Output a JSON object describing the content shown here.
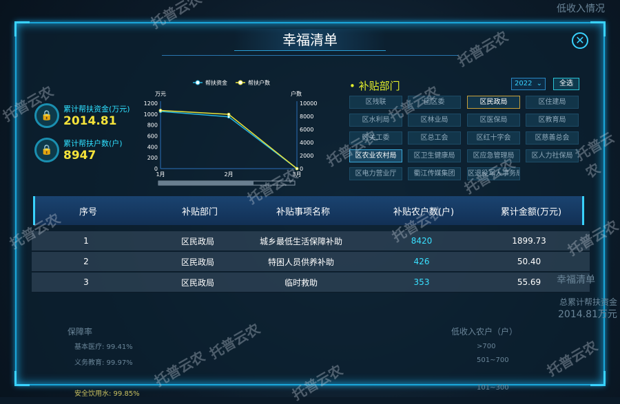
{
  "modal": {
    "title": "幸福清单",
    "close_icon": "close-icon"
  },
  "stats": [
    {
      "label": "累计帮扶资金(万元)",
      "value": "2014.81",
      "icon": "lock-icon"
    },
    {
      "label": "累计帮扶户数(户)",
      "value": "8947",
      "icon": "lock-icon"
    }
  ],
  "chart_data": {
    "type": "line",
    "categories": [
      "1月",
      "2月",
      "3月"
    ],
    "series": [
      {
        "name": "帮扶资金",
        "axis": "left",
        "color": "#27b6e0",
        "values": [
          1050,
          950,
          0
        ]
      },
      {
        "name": "帮扶户数",
        "axis": "right",
        "color": "#e8e23a",
        "values": [
          8900,
          8300,
          0
        ]
      }
    ],
    "ylabel_left": "万元",
    "ylabel_right": "户数",
    "ylim_left": [
      0,
      1200
    ],
    "ylim_right": [
      0,
      10000
    ],
    "yticks_left": [
      "0",
      "200",
      "400",
      "600",
      "800",
      "1000",
      "1200"
    ],
    "yticks_right": [
      "0",
      "2000",
      "4000",
      "6000",
      "8000",
      "10000"
    ],
    "legend": "top",
    "grid": false
  },
  "departments": {
    "title": "补贴部门",
    "year": "2022",
    "select_all": "全选",
    "items": [
      "区残联",
      "团区委",
      "区民政局",
      "区住建局",
      "区水利局",
      "区林业局",
      "区医保局",
      "区教育局",
      "区关工委",
      "区总工会",
      "区红十字会",
      "区慈善总会",
      "区农业农村局",
      "区卫生健康局",
      "区应急管理局",
      "区人力社保局",
      "区电力营业厅",
      "衢江传媒集团",
      "区退役军人事务局"
    ],
    "selected": "区民政局",
    "highlighted": "区农业农村局"
  },
  "table": {
    "headers": [
      "序号",
      "补贴部门",
      "补贴事项名称",
      "补贴农户数(户)",
      "累计金额(万元)"
    ],
    "rows": [
      [
        "1",
        "区民政局",
        "城乡最低生活保障补助",
        "8420",
        "1899.73"
      ],
      [
        "2",
        "区民政局",
        "特困人员供养补助",
        "426",
        "50.40"
      ],
      [
        "3",
        "区民政局",
        "临时救助",
        "353",
        "55.69"
      ]
    ]
  },
  "background": {
    "texts": [
      "低收入情况",
      "幸福清单",
      "总累计帮扶资金",
      "2014.81万元",
      "保障率",
      "基本医疗: 99.41%",
      "义务教育: 99.97%",
      "安全饮用水: 99.85%",
      "低收入农户（户）",
      ">700",
      "501~700",
      "101~300"
    ]
  },
  "watermark": "托普云农"
}
